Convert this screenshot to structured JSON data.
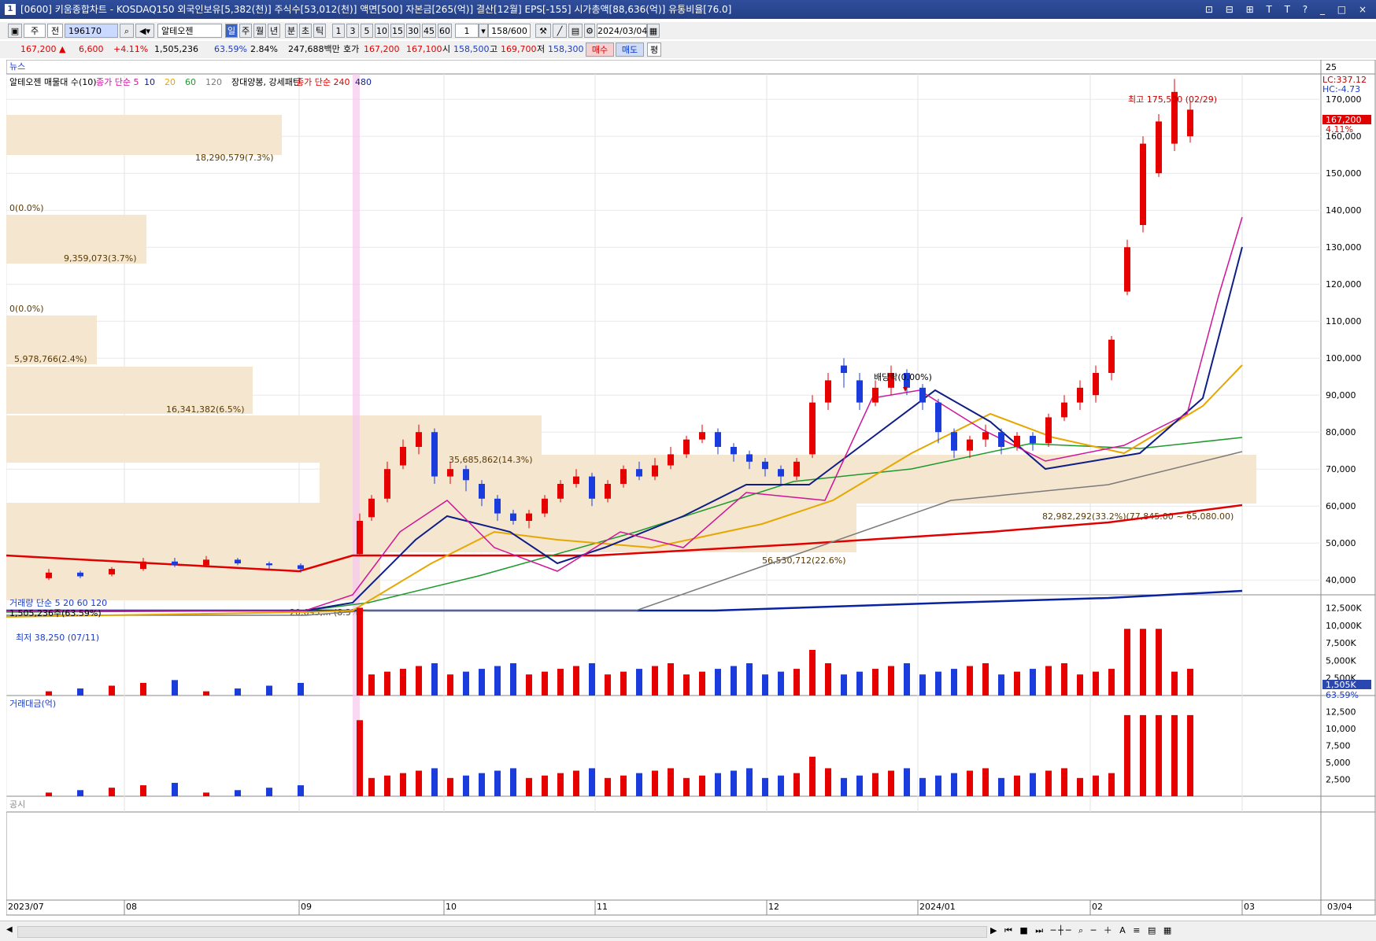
{
  "window": {
    "number": "1",
    "title": "[0600] 키움종합차트 - KOSDAQ150 외국인보유[5,382(천)] 주식수[53,012(천)] 액면[500] 자본금[265(억)] 결산[12월] EPS[-155] 시가총액[88,636(억)] 유통비율[76.0]",
    "controls": "⊡ ⊟ ⊞ T T ? _ □ ×"
  },
  "toolbar": {
    "type_label": "주",
    "prev_label": "전",
    "code_value": "196170",
    "stock_name": "알테오젠",
    "period_buttons": [
      "일",
      "주",
      "월",
      "년",
      "분",
      "초",
      "틱"
    ],
    "interval_buttons": [
      "1",
      "3",
      "5",
      "10",
      "15",
      "30",
      "45",
      "60"
    ],
    "count_value": "1",
    "bar_count": "158/600",
    "date_value": "2024/03/04"
  },
  "quote": {
    "price": "167,200 ▲",
    "change": "6,600",
    "change_pct": "+4.11%",
    "volume": "1,505,236",
    "vol_ratio": "63.59%",
    "turnover": "2.84%",
    "amount": "247,688백만",
    "ask_label": "호가",
    "ask": "167,200",
    "bid": "167,100",
    "open_label": "시",
    "open": "158,500",
    "high_label": "고",
    "high": "169,700",
    "low_label": "저",
    "low": "158,300",
    "buy_label": "매수",
    "sell_label": "매도",
    "avg_label": "평"
  },
  "chart": {
    "news_label": "뉴스",
    "news_axis": "25",
    "legend_price": [
      "알테오젠 매물대 수(10)",
      "종가 단순 5",
      "10",
      "20",
      "60",
      "120",
      "장대양봉, 강세패턴",
      "종가 단순 240",
      "480"
    ],
    "lc": "LC:337.12",
    "hc": "HC:-4.73",
    "price_tag": "167,200",
    "pct_tag": "4.11%",
    "high_marker": "최고 175,500 (02/29)",
    "low_marker": "최저 38,250 (07/11)",
    "dividend_marker": "배당락(0.00%)",
    "price_axis": [
      "170,000",
      "160,000",
      "150,000",
      "140,000",
      "130,000",
      "120,000",
      "110,000",
      "100,000",
      "90,000",
      "80,000",
      "70,000",
      "60,000",
      "50,000",
      "40,000"
    ],
    "volume_profile": [
      {
        "label": "18,290,579(7.3%)"
      },
      {
        "label": "0(0.0%)"
      },
      {
        "label": "9,359,073(3.7%)"
      },
      {
        "label": "0(0.0%)"
      },
      {
        "label": "5,978,766(2.4%)"
      },
      {
        "label": "16,341,382(6.5%)"
      },
      {
        "label": "35,685,862(14.3%)"
      },
      {
        "label": "82,982,292(33.2%)(77,845.00 ~ 65,080.00)"
      },
      {
        "label": "56,530,712(22.6%)"
      },
      {
        "label": "20,695,... (8.3%)"
      }
    ],
    "vol_legend": [
      "거래량",
      "단순 5",
      "20",
      "60",
      "120"
    ],
    "vol_sub": "1,505,236주(63.59%)",
    "vol_axis": [
      "12,500K",
      "10,000K",
      "7,500K",
      "5,000K",
      "2,500K"
    ],
    "vol_tag": "1,505K",
    "vol_pct_tag": "63.59%",
    "amt_legend": "거래대금(억)",
    "amt_axis": [
      "12,500",
      "10,000",
      "7,500",
      "5,000",
      "2,500"
    ],
    "disclosure_label": "공시",
    "date_axis": [
      "2023/07",
      "08",
      "09",
      "10",
      "11",
      "12",
      "2024/01",
      "02",
      "03"
    ],
    "date_end": "03/04"
  },
  "colors": {
    "up": "#e60000",
    "down": "#1a3cdc",
    "ma5": "#d0149a",
    "ma10": "#0e1e86",
    "ma20": "#e6a800",
    "ma60": "#1c9a2c",
    "ma120": "#7a7a7a",
    "ma240": "#e00000",
    "ma480": "#0a22a0",
    "profile": "#f5e6d0"
  }
}
